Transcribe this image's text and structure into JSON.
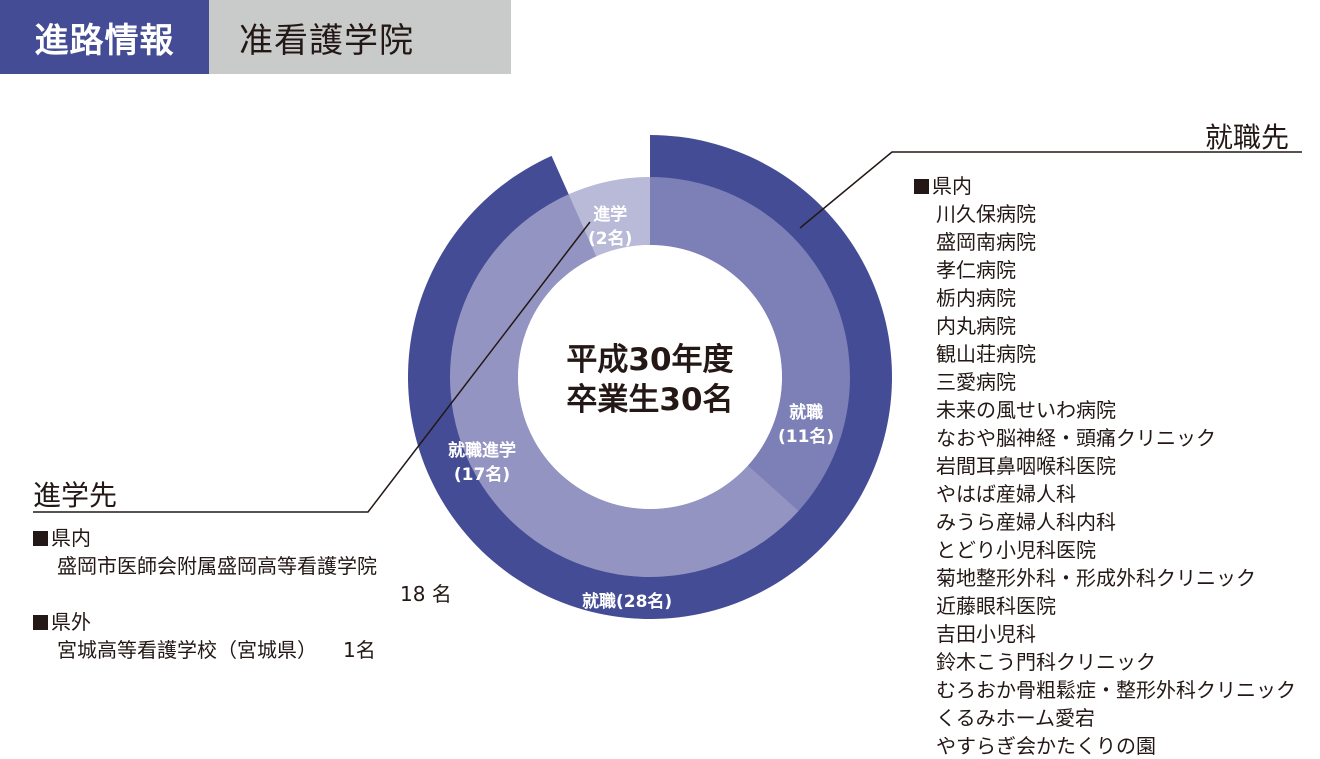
{
  "header": {
    "tag": "進路情報",
    "title": "准看護学院"
  },
  "colors": {
    "header_tag_bg": "#434c95",
    "header_title_bg": "#c9caca",
    "outer_ring": "#434c95",
    "inner_employ": "#7d7fb7",
    "inner_advance_employ": "#9494c2",
    "inner_advance": "#b9b9d8",
    "text": "#231815"
  },
  "chart_data": {
    "type": "pie",
    "center_label": [
      "平成30年度",
      "卒業生30名"
    ],
    "total": 30,
    "outer_ring": [
      {
        "label": "就職",
        "count_text": "(28名)",
        "value": 28
      }
    ],
    "inner_ring": [
      {
        "label": "就職",
        "count_text": "(11名)",
        "value": 11
      },
      {
        "label": "就職進学",
        "count_text": "(17名)",
        "value": 17
      },
      {
        "label": "進学",
        "count_text": "(2名)",
        "value": 2
      }
    ]
  },
  "employment": {
    "heading": "就職先",
    "in_pref": {
      "label": "県内",
      "items": [
        "川久保病院",
        "盛岡南病院",
        "孝仁病院",
        "栃内病院",
        "内丸病院",
        "観山荘病院",
        "三愛病院",
        "未来の風せいわ病院",
        "なおや脳神経・頭痛クリニック",
        "岩間耳鼻咽喉科医院",
        "やはば産婦人科",
        "みうら産婦人科内科",
        "とどり小児科医院",
        "菊地整形外科・形成外科クリニック",
        "近藤眼科医院",
        "吉田小児科",
        "鈴木こう門科クリニック",
        "むろおか骨粗鬆症・整形外科クリニック",
        "くるみホーム愛宕",
        "やすらぎ会かたくりの園"
      ]
    }
  },
  "advancement": {
    "heading": "進学先",
    "in_pref": {
      "label": "県内",
      "school": "盛岡市医師会附属盛岡高等看護学院",
      "count": "18 名"
    },
    "out_pref": {
      "label": "県外",
      "school": "宮城高等看護学校（宮城県）",
      "count": "1名"
    }
  }
}
